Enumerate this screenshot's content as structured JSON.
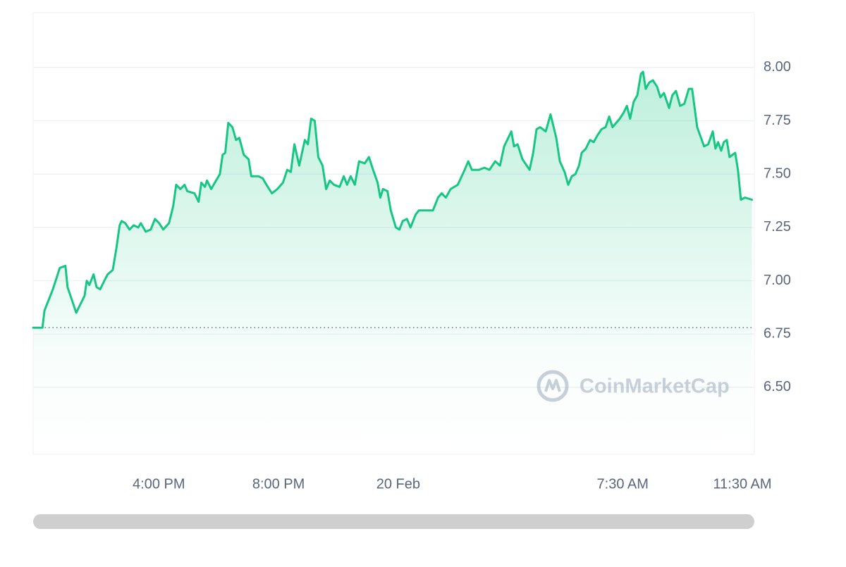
{
  "chart_data": {
    "type": "line",
    "watermark": "CoinMarketCap",
    "x": [
      11.8,
      12.11,
      12.18,
      12.46,
      12.69,
      12.88,
      12.95,
      13.12,
      13.24,
      13.52,
      13.59,
      13.68,
      13.82,
      13.92,
      14.04,
      14.18,
      14.29,
      14.46,
      14.58,
      14.69,
      14.76,
      14.88,
      15.02,
      15.16,
      15.31,
      15.4,
      15.56,
      15.73,
      15.87,
      16.01,
      16.15,
      16.34,
      16.48,
      16.58,
      16.72,
      16.86,
      16.95,
      17.19,
      17.33,
      17.42,
      17.54,
      17.61,
      17.75,
      17.87,
      18.04,
      18.13,
      18.22,
      18.32,
      18.46,
      18.58,
      18.69,
      18.84,
      19.0,
      19.09,
      19.33,
      19.47,
      19.64,
      19.78,
      19.96,
      20.15,
      20.29,
      20.41,
      20.53,
      20.69,
      20.88,
      20.98,
      21.09,
      21.21,
      21.33,
      21.47,
      21.59,
      21.71,
      21.85,
      22.04,
      22.18,
      22.29,
      22.41,
      22.55,
      22.69,
      22.88,
      23.02,
      23.16,
      23.31,
      23.4,
      23.49,
      23.64,
      23.75,
      23.92,
      24.04,
      24.15,
      24.29,
      24.41,
      24.58,
      24.69,
      24.93,
      25.16,
      25.33,
      25.45,
      25.59,
      25.75,
      25.99,
      26.22,
      26.34,
      26.46,
      26.69,
      26.88,
      27.05,
      27.24,
      27.4,
      27.54,
      27.78,
      27.87,
      27.99,
      28.15,
      28.39,
      28.51,
      28.62,
      28.74,
      28.93,
      29.09,
      29.28,
      29.4,
      29.56,
      29.68,
      29.8,
      29.92,
      30.04,
      30.13,
      30.27,
      30.41,
      30.53,
      30.65,
      30.79,
      30.93,
      31.05,
      31.16,
      31.4,
      31.54,
      31.64,
      31.75,
      31.87,
      31.99,
      32.11,
      32.18,
      32.27,
      32.39,
      32.51,
      32.65,
      32.76,
      32.88,
      33.05,
      33.16,
      33.28,
      33.42,
      33.56,
      33.71,
      33.82,
      33.99,
      34.22,
      34.36,
      34.51,
      34.6,
      34.69,
      34.79,
      34.88,
      34.98,
      35.07,
      35.26,
      35.35,
      35.45,
      35.59,
      35.82
    ],
    "series": [
      {
        "color": "#16c784",
        "values": [
          6.78,
          6.78,
          6.86,
          6.96,
          7.06,
          7.07,
          6.97,
          6.9,
          6.85,
          6.93,
          7.0,
          6.98,
          7.03,
          6.97,
          6.96,
          7.0,
          7.03,
          7.05,
          7.15,
          7.26,
          7.28,
          7.27,
          7.24,
          7.26,
          7.25,
          7.27,
          7.23,
          7.24,
          7.29,
          7.27,
          7.24,
          7.27,
          7.35,
          7.45,
          7.43,
          7.45,
          7.42,
          7.41,
          7.37,
          7.46,
          7.44,
          7.47,
          7.43,
          7.46,
          7.5,
          7.59,
          7.6,
          7.74,
          7.72,
          7.66,
          7.67,
          7.59,
          7.57,
          7.49,
          7.49,
          7.48,
          7.44,
          7.41,
          7.43,
          7.46,
          7.52,
          7.51,
          7.64,
          7.54,
          7.66,
          7.64,
          7.76,
          7.75,
          7.58,
          7.54,
          7.43,
          7.47,
          7.45,
          7.44,
          7.49,
          7.45,
          7.49,
          7.45,
          7.56,
          7.55,
          7.58,
          7.52,
          7.46,
          7.39,
          7.43,
          7.42,
          7.33,
          7.25,
          7.24,
          7.28,
          7.29,
          7.25,
          7.31,
          7.33,
          7.33,
          7.33,
          7.39,
          7.41,
          7.39,
          7.43,
          7.45,
          7.52,
          7.56,
          7.52,
          7.52,
          7.53,
          7.52,
          7.56,
          7.54,
          7.63,
          7.7,
          7.63,
          7.64,
          7.57,
          7.52,
          7.6,
          7.71,
          7.72,
          7.7,
          7.78,
          7.67,
          7.56,
          7.51,
          7.45,
          7.49,
          7.5,
          7.54,
          7.6,
          7.62,
          7.66,
          7.65,
          7.68,
          7.71,
          7.72,
          7.77,
          7.72,
          7.76,
          7.79,
          7.82,
          7.76,
          7.84,
          7.87,
          7.97,
          7.98,
          7.9,
          7.93,
          7.94,
          7.91,
          7.86,
          7.88,
          7.81,
          7.87,
          7.89,
          7.82,
          7.83,
          7.9,
          7.9,
          7.72,
          7.63,
          7.64,
          7.7,
          7.62,
          7.65,
          7.61,
          7.65,
          7.66,
          7.58,
          7.6,
          7.52,
          7.38,
          7.39,
          7.38
        ]
      }
    ],
    "reference_line": 6.78,
    "xlim": [
      11.8,
      35.9
    ],
    "xticks": [
      {
        "value": 16,
        "label": "4:00 PM"
      },
      {
        "value": 20,
        "label": "8:00 PM"
      },
      {
        "value": 24,
        "label": "20 Feb"
      },
      {
        "value": 31.5,
        "label": "7:30 AM"
      },
      {
        "value": 35.5,
        "label": "11:30 AM"
      }
    ],
    "ylim": [
      6.186,
      8.257
    ],
    "yticks": [
      {
        "value": 8,
        "label": "8.00"
      },
      {
        "value": 7.75,
        "label": "7.75"
      },
      {
        "value": 7.5,
        "label": "7.50"
      },
      {
        "value": 7.25,
        "label": "7.25"
      },
      {
        "value": 7,
        "label": "7.00"
      },
      {
        "value": 6.75,
        "label": "6.75"
      },
      {
        "value": 6.5,
        "label": "6.50"
      }
    ],
    "grid": true
  }
}
